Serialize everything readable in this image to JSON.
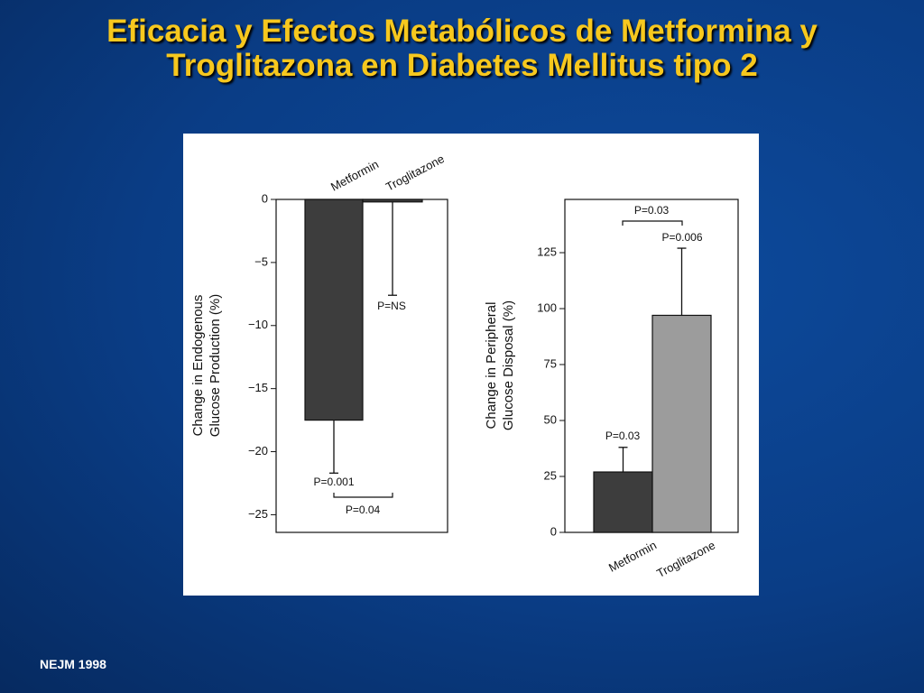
{
  "slide": {
    "title": [
      "Eficacia y Efectos Metabólicos de Metformina y",
      "Troglitazona en Diabetes Mellitus tipo 2"
    ],
    "footer": "NEJM 1998"
  },
  "chart_data": [
    {
      "type": "bar",
      "categories": [
        "Metformin",
        "Troglitazone"
      ],
      "values": [
        -17.5,
        -0.2
      ],
      "errors": [
        4.2,
        7.4
      ],
      "colors": [
        "#3d3d3d",
        "#3d3d3d"
      ],
      "ylabel": [
        "Change in Endogenous",
        "Glucose Production (%)"
      ],
      "ylim": [
        -26.4,
        0
      ],
      "yticks": [
        0,
        {
          "value": -5,
          "label": "−5"
        },
        {
          "value": -10,
          "label": "−10"
        },
        {
          "value": -15,
          "label": "−15"
        },
        {
          "value": -20,
          "label": "−20"
        },
        {
          "value": -25,
          "label": "−25"
        }
      ],
      "annotations": [
        "P=NS",
        "P=0.001",
        "P=0.04"
      ]
    },
    {
      "type": "bar",
      "categories": [
        "Metformin",
        "Troglitazone"
      ],
      "values": [
        27,
        97
      ],
      "errors": [
        11,
        30
      ],
      "colors": [
        "#3d3d3d",
        "#9c9c9c"
      ],
      "ylabel": [
        "Change in Peripheral",
        "Glucose Disposal (%)"
      ],
      "ylim": [
        0,
        148.8
      ],
      "yticks": [
        0,
        25,
        50,
        75,
        100,
        125
      ],
      "annotations": [
        "P=0.03",
        "P=0.006",
        "P=0.03"
      ]
    }
  ]
}
